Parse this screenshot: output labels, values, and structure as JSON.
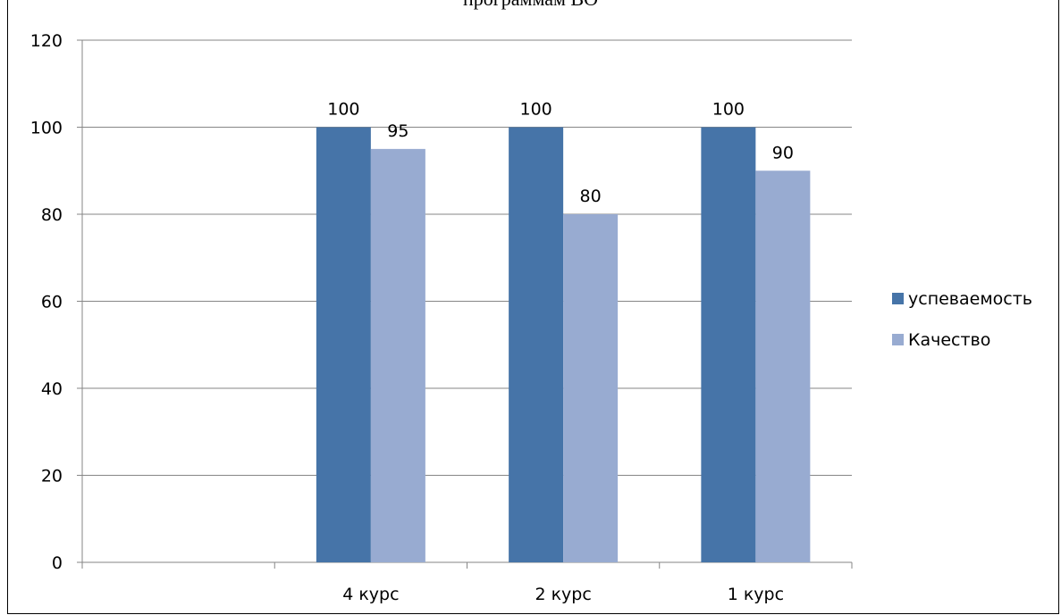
{
  "chart_data": {
    "type": "bar",
    "title": "программам ВО",
    "categories": [
      "",
      "4 курс",
      "2 курс",
      "1 курс"
    ],
    "series": [
      {
        "name": "успеваемость",
        "color": "#4674A8",
        "values": [
          null,
          100,
          100,
          100
        ]
      },
      {
        "name": "Качество",
        "color": "#98ABD1",
        "values": [
          null,
          95,
          80,
          90
        ]
      }
    ],
    "ylim": [
      0,
      120
    ],
    "yticks": [
      0,
      20,
      40,
      60,
      80,
      100,
      120
    ],
    "grid": true,
    "legend": "right",
    "data_labels": true,
    "xlabel": "",
    "ylabel": ""
  }
}
